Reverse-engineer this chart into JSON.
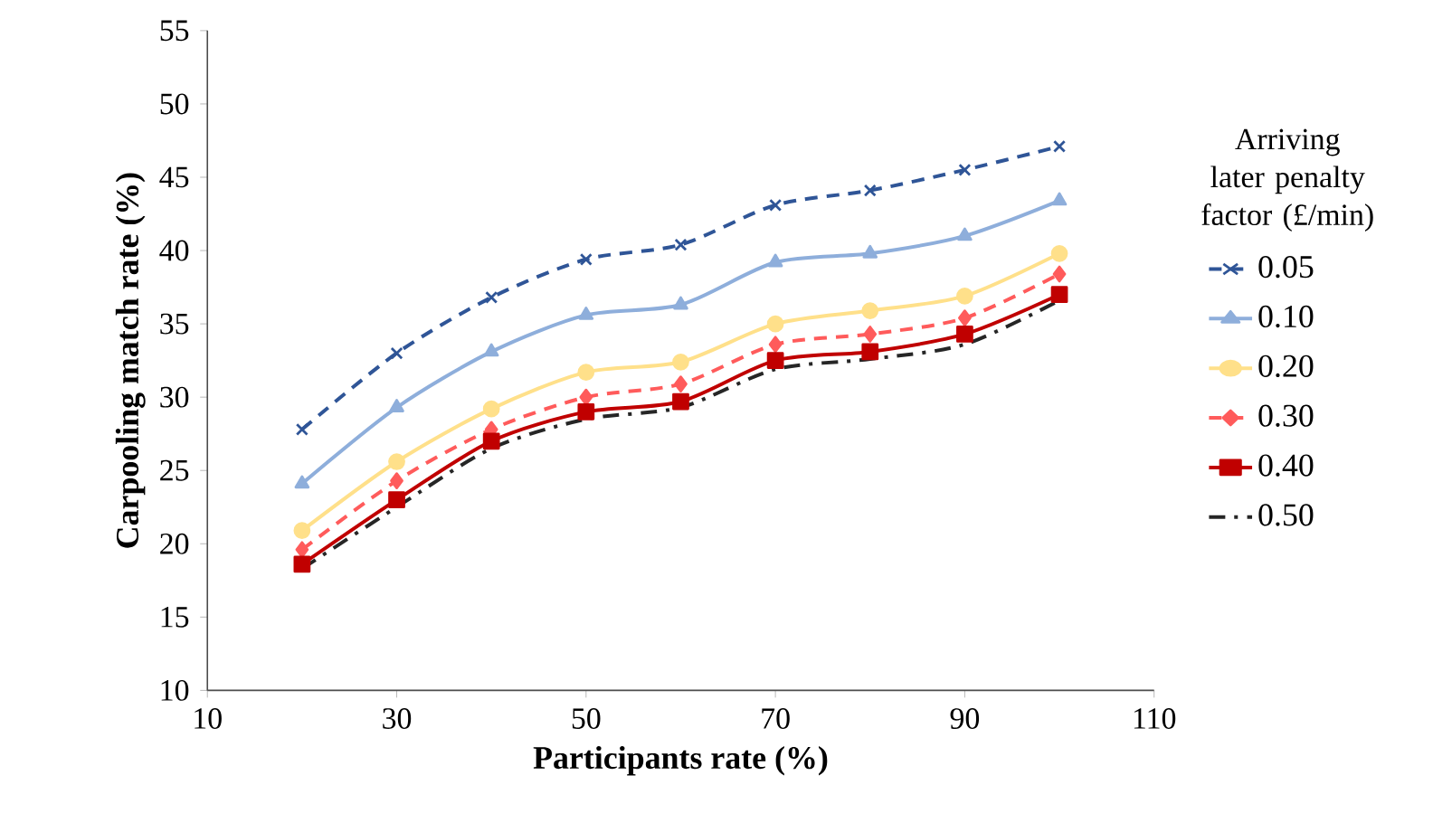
{
  "chart_data": {
    "type": "line",
    "xlabel": "Participants  rate (%)",
    "ylabel": "Carpooling  match  rate (%)",
    "legend_title": "Arriving later penalty factor (£/min)",
    "x": [
      20,
      30,
      40,
      50,
      60,
      70,
      80,
      90,
      100
    ],
    "xlim": [
      10,
      110
    ],
    "xticks": [
      10,
      30,
      50,
      70,
      90,
      110
    ],
    "ylim": [
      10,
      55
    ],
    "yticks": [
      10,
      15,
      20,
      25,
      30,
      35,
      40,
      45,
      50,
      55
    ],
    "grid": false,
    "legend": "right",
    "series": [
      {
        "name": "0.05",
        "color": "#2f5597",
        "marker": "cross",
        "line_style": "dashed",
        "values": [
          27.8,
          33.0,
          36.8,
          39.4,
          40.4,
          43.1,
          44.1,
          45.5,
          47.1
        ]
      },
      {
        "name": "0.10",
        "color": "#8eaedb",
        "marker": "triangle",
        "line_style": "solid",
        "values": [
          24.1,
          29.3,
          33.1,
          35.6,
          36.3,
          39.2,
          39.8,
          41.0,
          43.4
        ]
      },
      {
        "name": "0.20",
        "color": "#ffe08a",
        "marker": "circle",
        "line_style": "solid",
        "values": [
          20.9,
          25.6,
          29.2,
          31.7,
          32.4,
          35.0,
          35.9,
          36.9,
          39.8
        ]
      },
      {
        "name": "0.30",
        "color": "#ff5b5b",
        "marker": "diamond",
        "line_style": "dashed",
        "values": [
          19.6,
          24.3,
          27.8,
          30.0,
          30.9,
          33.6,
          34.3,
          35.4,
          38.4
        ]
      },
      {
        "name": "0.40",
        "color": "#c00000",
        "marker": "square",
        "line_style": "solid",
        "values": [
          18.6,
          23.0,
          27.0,
          29.0,
          29.7,
          32.5,
          33.1,
          34.3,
          37.0
        ]
      },
      {
        "name": "0.50",
        "color": "#262626",
        "marker": "none",
        "line_style": "dashdot",
        "values": [
          18.3,
          22.5,
          26.5,
          28.5,
          29.3,
          31.9,
          32.6,
          33.6,
          36.6
        ]
      }
    ]
  }
}
